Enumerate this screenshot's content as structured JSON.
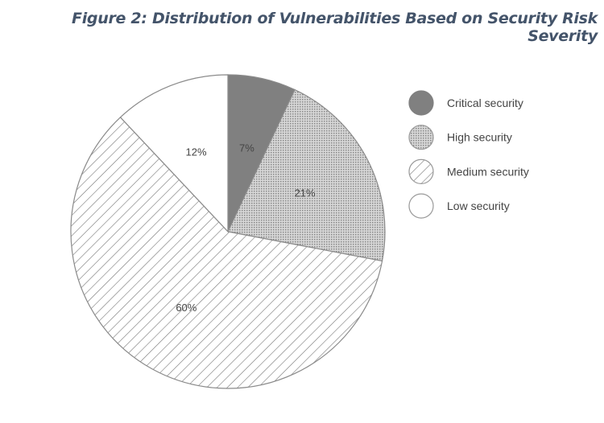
{
  "chart_data": {
    "type": "pie",
    "title": "Figure 2: Distribution of Vulnerabilities Based on Security Risk Severity",
    "categories": [
      "Critical security",
      "High security",
      "Medium security",
      "Low security"
    ],
    "values": [
      7,
      21,
      60,
      12
    ],
    "labels": [
      "7%",
      "21%",
      "60%",
      "12%"
    ],
    "fills": [
      "solid",
      "dots",
      "hatch",
      "none"
    ],
    "colors": [
      "#808080",
      "#b0b0b0",
      "#ffffff",
      "#ffffff"
    ],
    "legend_position": "right",
    "start": "top",
    "direction": "clockwise"
  }
}
